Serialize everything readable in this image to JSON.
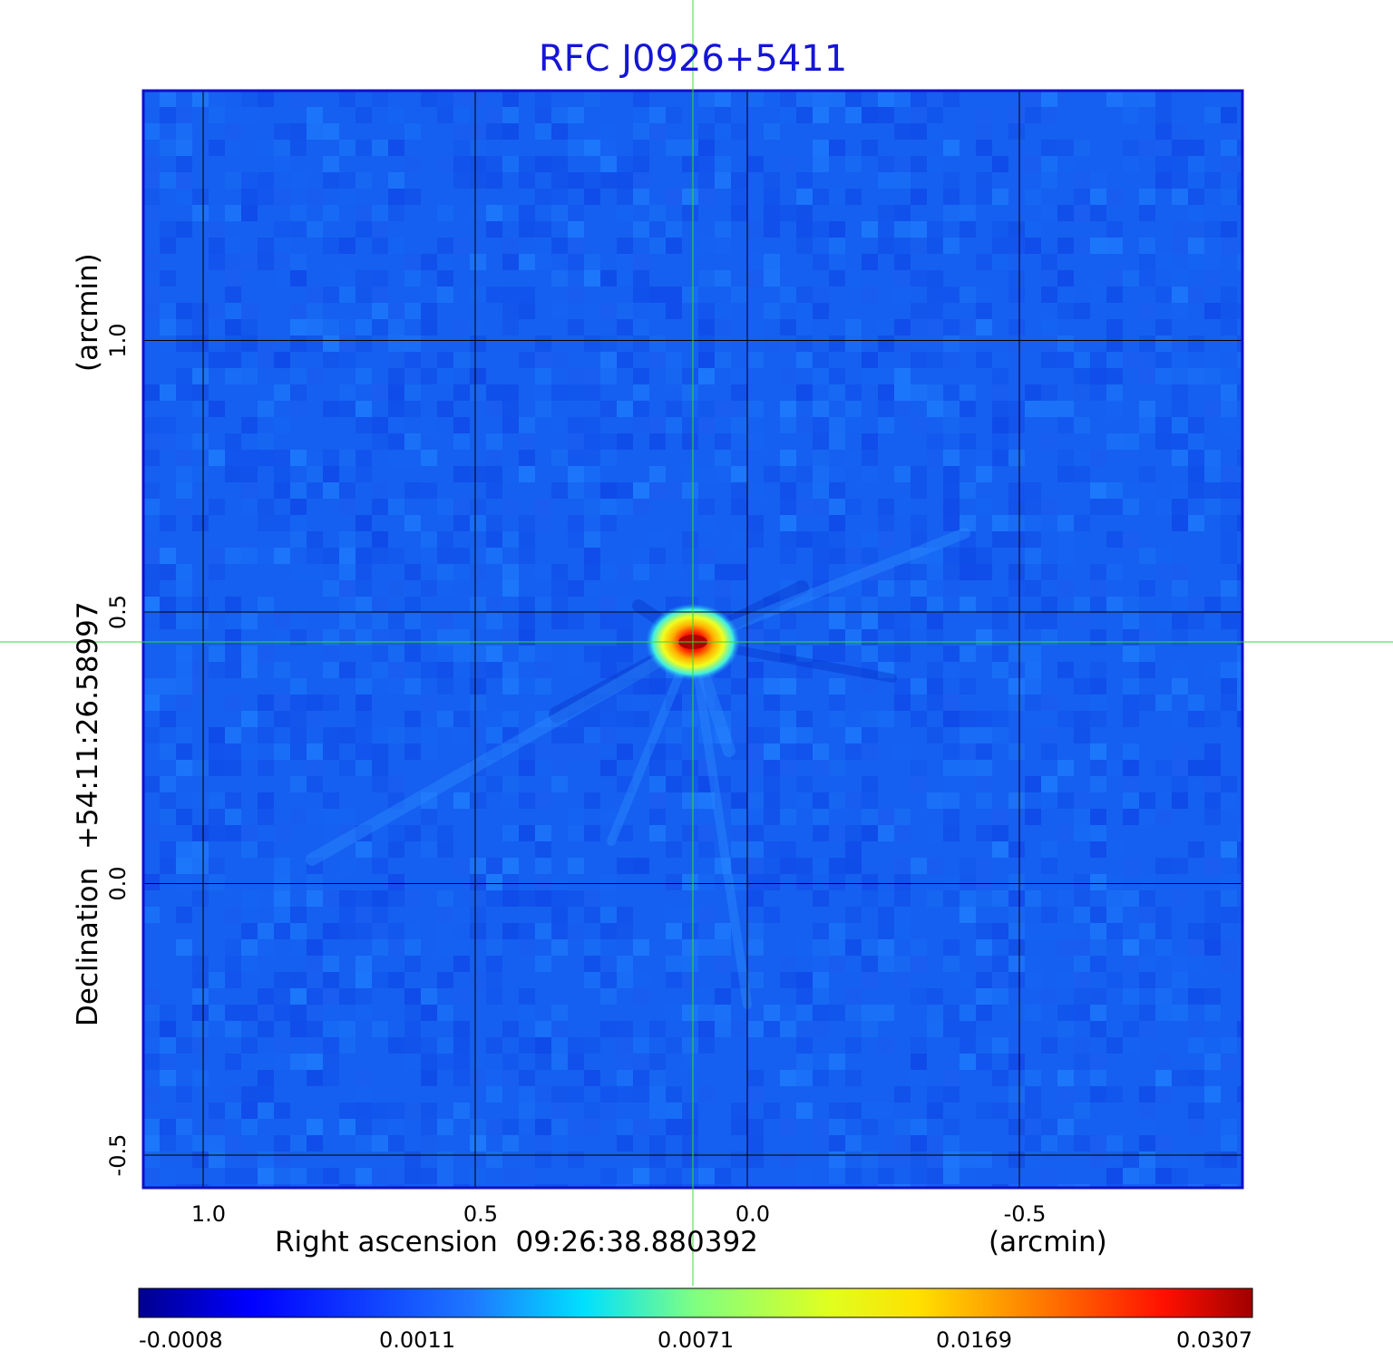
{
  "chart_data": {
    "type": "heatmap",
    "title": "RFC J0926+5411",
    "xlabel": "Right ascension  09:26:38.880392",
    "xunit": "(arcmin)",
    "ylabel": "Declination  +54:11:26.58997",
    "yunit": "(arcmin)",
    "x_ticks": [
      1.0,
      0.5,
      0.0,
      -0.5
    ],
    "x_tick_labels": [
      "1.0",
      "0.5",
      "0.0",
      "-0.5"
    ],
    "y_ticks": [
      1.0,
      0.5,
      0.0,
      -0.5
    ],
    "y_tick_labels": [
      "1.0",
      "0.5",
      "0.0",
      "-0.5"
    ],
    "xlim": [
      1.11,
      -0.91
    ],
    "ylim": [
      -0.56,
      1.46
    ],
    "grid": true,
    "crosshair": {
      "x": 0.1,
      "y": 0.445
    },
    "source_peak": {
      "x": 0.1,
      "y": 0.445,
      "value": 0.0307
    },
    "colormap": "jet",
    "colorbar_ticks": [
      "-0.0008",
      "0.0011",
      "0.0071",
      "0.0169",
      "0.0307"
    ],
    "colorbar_range": [
      -0.0008,
      0.0307
    ],
    "colors": {
      "title": "#1515d6",
      "frame": "#1010c8",
      "background_map": "#1560f0",
      "crosshair": "#33dd33",
      "grid": "#000000"
    }
  }
}
